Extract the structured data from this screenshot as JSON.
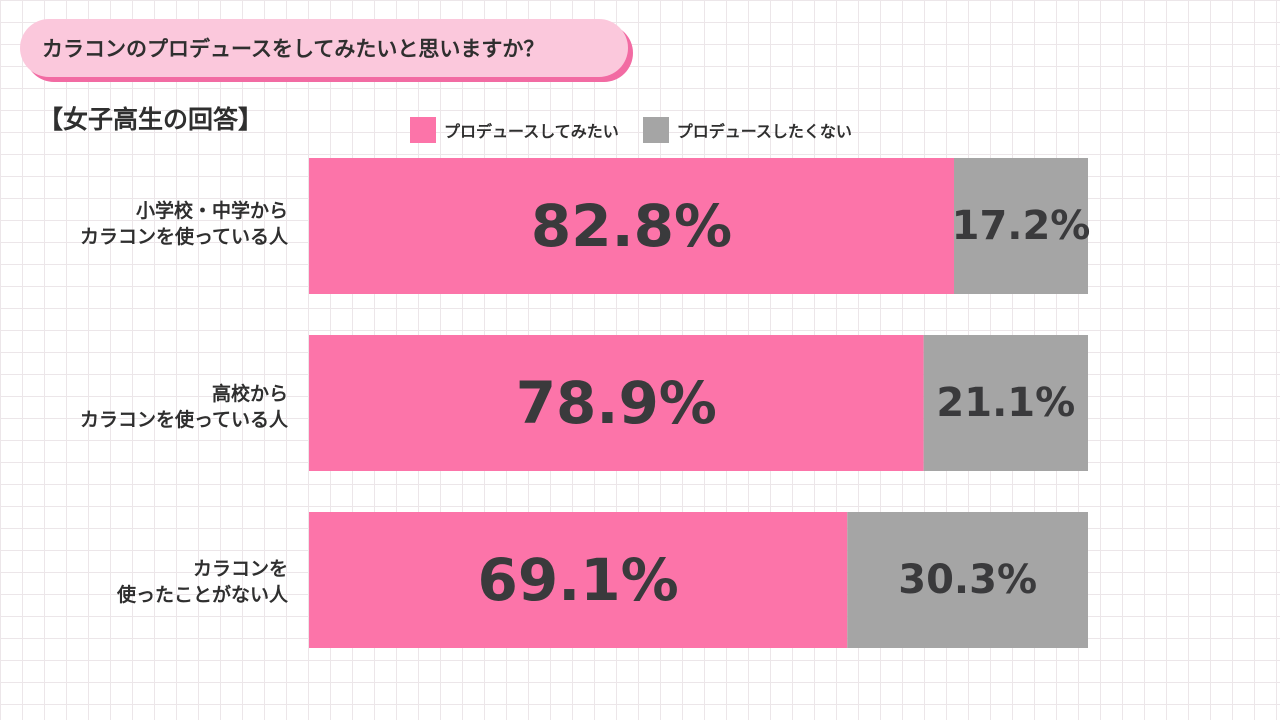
{
  "header": {
    "question": "カラコンのプロデュースをしてみたいと思いますか？",
    "subtitle": "【女子高生の回答】"
  },
  "colors": {
    "yes": "#fc74a9",
    "no": "#a5a5a5",
    "pill": "#fbc8dc",
    "pill_shadow": "#f26ba3"
  },
  "chart_data": {
    "type": "bar",
    "orientation": "horizontal",
    "stacked": true,
    "title": "カラコンのプロデュースをしてみたいと思いますか？",
    "subtitle": "【女子高生の回答】",
    "legend_position": "top",
    "categories": [
      [
        "小学校・中学から",
        "カラコンを使っている人"
      ],
      [
        "高校から",
        "カラコンを使っている人"
      ],
      [
        "カラコンを",
        "使ったことがない人"
      ]
    ],
    "series": [
      {
        "name": "プロデュースしてみたい",
        "values": [
          82.8,
          78.9,
          69.1
        ],
        "labels": [
          "82.8%",
          "78.9%",
          "69.1%"
        ]
      },
      {
        "name": "プロデュースしたくない",
        "values": [
          17.2,
          21.1,
          30.3
        ],
        "labels": [
          "17.2%",
          "21.1%",
          "30.3%"
        ]
      }
    ],
    "xlim": [
      0,
      100
    ],
    "grid": false
  }
}
